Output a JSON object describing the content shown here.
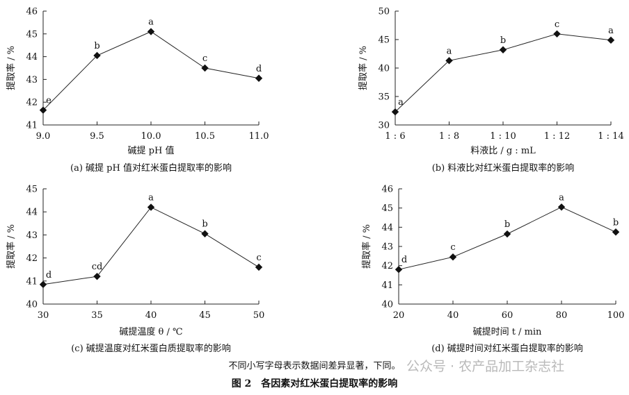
{
  "figure": {
    "note": "不同小写字母表示数据间差异显著，下同。",
    "title": "图 2　各因素对红米蛋白提取率的影响",
    "watermark": "公众号 · 农产品加工杂志社"
  },
  "chart_data": [
    {
      "type": "line",
      "caption": "(a)  碱提 pH 值对红米蛋白提取率的影响",
      "xlabel": "碱提 pH 值",
      "ylabel": "提取率 / %",
      "x_ticks": [
        "9.0",
        "9.5",
        "10.0",
        "10.5",
        "11.0"
      ],
      "xlim": [
        9.0,
        11.0
      ],
      "ylim": [
        41,
        46
      ],
      "y_ticks": [
        41,
        42,
        43,
        44,
        45,
        46
      ],
      "x": [
        9.0,
        9.5,
        10.0,
        10.5,
        11.0
      ],
      "y": [
        41.65,
        44.05,
        45.1,
        43.5,
        43.05
      ],
      "labels": [
        "e",
        "b",
        "a",
        "c",
        "d"
      ]
    },
    {
      "type": "line",
      "caption": "(b)  料液比对红米蛋白提取率的影响",
      "xlabel": "料液比 / g : mL",
      "ylabel": "提取率 / %",
      "x_ticks": [
        "1 : 6",
        "1 : 8",
        "1 : 10",
        "1 : 12",
        "1 : 14"
      ],
      "xlim": [
        6,
        14
      ],
      "ylim": [
        30,
        50
      ],
      "y_ticks": [
        30,
        35,
        40,
        45,
        50
      ],
      "x": [
        6,
        8,
        10,
        12,
        14
      ],
      "y": [
        32.3,
        41.3,
        43.2,
        46.0,
        44.9
      ],
      "labels": [
        "a",
        "a",
        "b",
        "c",
        "a"
      ]
    },
    {
      "type": "line",
      "caption": "(c)  碱提温度对红米蛋白质提取率的影响",
      "xlabel": "碱提温度 θ / ℃",
      "ylabel": "提取率 / %",
      "x_ticks": [
        "30",
        "35",
        "40",
        "45",
        "50"
      ],
      "xlim": [
        30,
        50
      ],
      "ylim": [
        40,
        45
      ],
      "y_ticks": [
        40,
        41,
        42,
        43,
        44,
        45
      ],
      "x": [
        30,
        35,
        40,
        45,
        50
      ],
      "y": [
        40.85,
        41.2,
        44.2,
        43.05,
        41.6
      ],
      "labels": [
        "d",
        "cd",
        "a",
        "b",
        "c"
      ]
    },
    {
      "type": "line",
      "caption": "(d)  碱提时间对红米蛋白提取率的影响",
      "xlabel": "碱提时间 t / min",
      "ylabel": "提取率 / %",
      "x_ticks": [
        "20",
        "40",
        "60",
        "80",
        "100"
      ],
      "xlim": [
        20,
        100
      ],
      "ylim": [
        40,
        46
      ],
      "y_ticks": [
        40,
        41,
        42,
        43,
        44,
        45,
        46
      ],
      "x": [
        20,
        40,
        60,
        80,
        100
      ],
      "y": [
        41.8,
        42.45,
        43.65,
        45.05,
        43.75
      ],
      "labels": [
        "d",
        "c",
        "b",
        "a",
        "b"
      ]
    }
  ]
}
